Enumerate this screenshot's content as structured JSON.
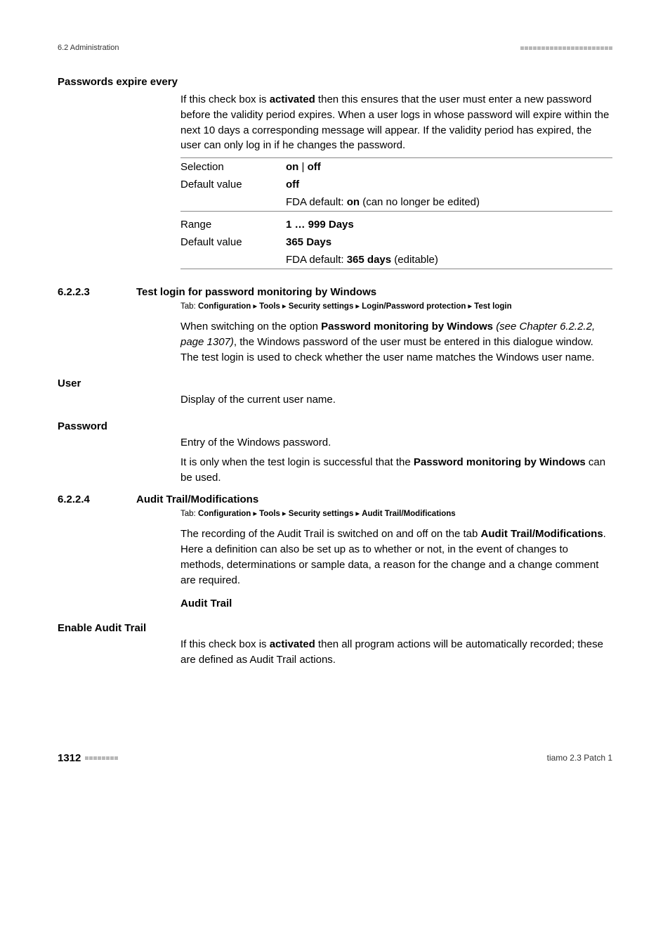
{
  "header": {
    "section": "6.2 Administration"
  },
  "passwords_expire": {
    "title": "Passwords expire every",
    "body": "If this check box is <b>activated</b> then this ensures that the user must enter a new password before the validity period expires. When a user logs in whose password will expire within the next 10 days a corresponding message will appear. If the validity period has expired, the user can only log in if he changes the password.",
    "rows1": {
      "selection_label": "Selection",
      "selection_value": "<b>on</b> | <b>off</b>",
      "default_label": "Default value",
      "default_value": "<b>off</b>",
      "default_note": "FDA default: <b>on</b> (can no longer be edited)"
    },
    "rows2": {
      "range_label": "Range",
      "range_value": "<b>1 … 999 Days</b>",
      "default_label": "Default value",
      "default_value": "<b>365 Days</b>",
      "default_note": "FDA default: <b>365 days</b> (editable)"
    }
  },
  "test_login": {
    "num": "6.2.2.3",
    "title": "Test login for password monitoring by Windows",
    "tab_prefix": "Tab: ",
    "tab_parts": [
      "Configuration",
      "Tools",
      "Security settings",
      "Login/Password protection",
      "Test login"
    ],
    "body": "When switching on the option <b>Password monitoring by Windows</b> <i>(see Chapter 6.2.2.2, page 1307)</i>, the Windows password of the user must be entered in this dialogue window. The test login is used to check whether the user name matches the Windows user name.",
    "user_label": "User",
    "user_body": "Display of the current user name.",
    "password_label": "Password",
    "password_body1": "Entry of the Windows password.",
    "password_body2": "It is only when the test login is successful that the <b>Password monitoring by Windows</b> can be used."
  },
  "audit": {
    "num": "6.2.2.4",
    "title": "Audit Trail/Modifications",
    "tab_prefix": "Tab: ",
    "tab_parts": [
      "Configuration",
      "Tools",
      "Security settings",
      "Audit Trail/Modifications"
    ],
    "body": "The recording of the Audit Trail is switched on and off on the tab <b>Audit Trail/Modifications</b>. Here a definition can also be set up as to whether or not, in the event of changes to methods, determinations or sample data, a reason for the change and a change comment are required.",
    "sub_title": "Audit Trail",
    "enable_label": "Enable Audit Trail",
    "enable_body": "If this check box is <b>activated</b> then all program actions will be automatically recorded; these are defined as Audit Trail actions."
  },
  "footer": {
    "page": "1312",
    "product": "tiamo 2.3 Patch 1"
  }
}
